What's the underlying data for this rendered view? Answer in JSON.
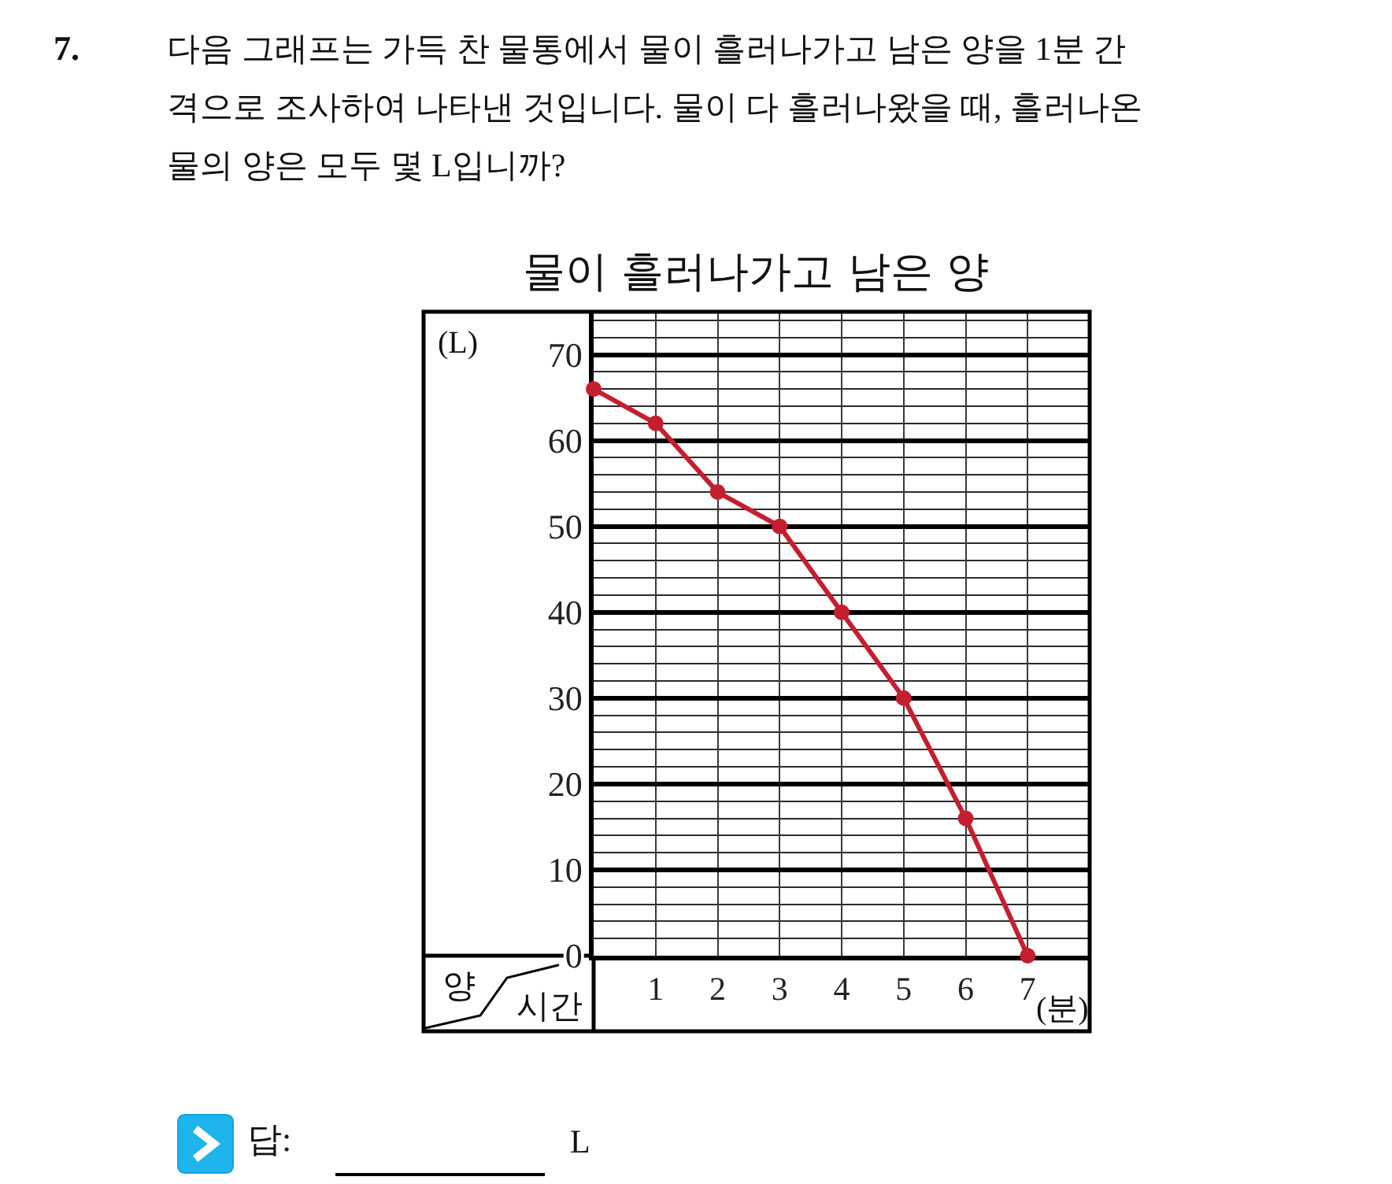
{
  "chart_data": {
    "type": "line",
    "title": "물이 흘러나가고 남은 양",
    "xlabel": "시간",
    "ylabel": "양",
    "x": [
      0,
      1,
      2,
      3,
      4,
      5,
      6,
      7
    ],
    "series": [
      {
        "color": "#c41f2e",
        "values": [
          66,
          62,
          54,
          50,
          40,
          30,
          16,
          0
        ]
      }
    ],
    "xlim": [
      0,
      8
    ],
    "xticks": [
      1,
      2,
      3,
      4,
      5,
      6,
      7
    ],
    "ylim": [
      0,
      75
    ],
    "yticks": [
      0,
      {
        "value": 2,
        "label": null
      },
      {
        "value": 4,
        "label": null
      },
      {
        "value": 6,
        "label": null
      },
      {
        "value": 8,
        "label": null
      },
      10,
      {
        "value": 12,
        "label": null
      },
      {
        "value": 14,
        "label": null
      },
      {
        "value": 16,
        "label": null
      },
      {
        "value": 18,
        "label": null
      },
      20,
      {
        "value": 22,
        "label": null
      },
      {
        "value": 24,
        "label": null
      },
      {
        "value": 26,
        "label": null
      },
      {
        "value": 28,
        "label": null
      },
      30,
      {
        "value": 32,
        "label": null
      },
      {
        "value": 34,
        "label": null
      },
      {
        "value": 36,
        "label": null
      },
      {
        "value": 38,
        "label": null
      },
      40,
      {
        "value": 42,
        "label": null
      },
      {
        "value": 44,
        "label": null
      },
      {
        "value": 46,
        "label": null
      },
      {
        "value": 48,
        "label": null
      },
      50,
      {
        "value": 52,
        "label": null
      },
      {
        "value": 54,
        "label": null
      },
      {
        "value": 56,
        "label": null
      },
      {
        "value": 58,
        "label": null
      },
      60,
      {
        "value": 62,
        "label": null
      },
      {
        "value": 64,
        "label": null
      },
      {
        "value": 66,
        "label": null
      },
      {
        "value": 68,
        "label": null
      },
      70,
      {
        "value": 72,
        "label": null
      },
      {
        "value": 74,
        "label": null
      }
    ],
    "grid": true,
    "marker": "circle",
    "line_style": "solid",
    "annotations": [
      "7.",
      "다음 그래프는 가득 찬 물통에서 물이 흘러나가고 남은 양을 1분 간\n격으로 조사하여 나타낸 것입니다. 물이 다 흘러나왔을 때, 흘러나온\n물의 양은 모두 몇 L입니까?",
      "(L)",
      "(분)",
      "답:",
      "L"
    ]
  }
}
